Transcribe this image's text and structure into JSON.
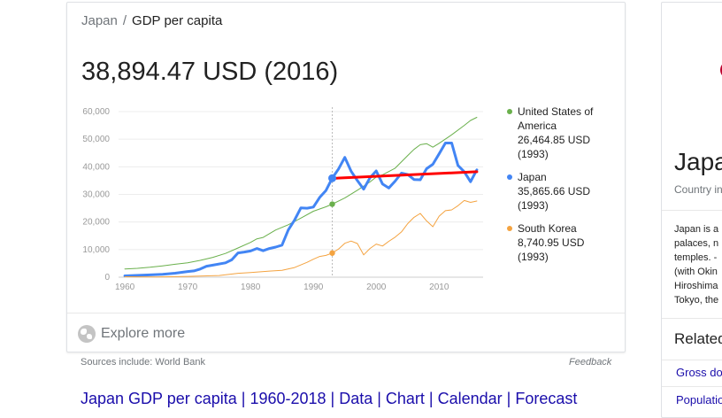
{
  "breadcrumb": {
    "country": "Japan",
    "separator": "/",
    "metric": "GDP per capita"
  },
  "headline": {
    "value": "38,894.47 USD (2016)"
  },
  "legend": [
    {
      "name_lines": [
        "United States of",
        "America"
      ],
      "value": "26,464.85 USD",
      "year": "(1993)",
      "color": "#6ab04c"
    },
    {
      "name_lines": [
        "Japan"
      ],
      "value": "35,865.66 USD",
      "year": "(1993)",
      "color": "#4285f4"
    },
    {
      "name_lines": [
        "South Korea"
      ],
      "value": "8,740.95 USD",
      "year": "(1993)",
      "color": "#f4a340"
    }
  ],
  "explore": {
    "label": "Explore more",
    "icon": "globe-icon"
  },
  "footer": {
    "sources": "Sources include: World Bank",
    "feedback": "Feedback"
  },
  "result": {
    "title": "Japan GDP per capita | 1960-2018 | Data | Chart | Calendar | Forecast"
  },
  "side_panel": {
    "title": "Japa",
    "subtitle": "Country in",
    "description_lines": [
      "Japan is a",
      "palaces, n",
      "temples. -",
      "(with Okin",
      "Hiroshima",
      "Tokyo, the"
    ],
    "related_label": "Related",
    "related_items": [
      "Gross do",
      "Population"
    ],
    "flag_color": "#bc002d"
  },
  "chart_data": {
    "type": "line",
    "title": "",
    "xlabel": "",
    "ylabel": "",
    "xlim": [
      1959,
      2017
    ],
    "ylim": [
      0,
      60000
    ],
    "x_ticks": [
      1960,
      1970,
      1980,
      1990,
      2000,
      2010
    ],
    "y_ticks": [
      0,
      10000,
      20000,
      30000,
      40000,
      50000,
      60000
    ],
    "y_tick_labels": [
      "0",
      "10,000",
      "20,000",
      "30,000",
      "40,000",
      "50,000",
      "60,000"
    ],
    "grid": true,
    "hover_year": 1993,
    "series": [
      {
        "name": "United States of America",
        "color": "#6ab04c",
        "width": 1,
        "points": [
          [
            1960,
            3000
          ],
          [
            1962,
            3200
          ],
          [
            1964,
            3600
          ],
          [
            1966,
            4100
          ],
          [
            1968,
            4700
          ],
          [
            1970,
            5200
          ],
          [
            1972,
            6100
          ],
          [
            1974,
            7200
          ],
          [
            1976,
            8600
          ],
          [
            1978,
            10600
          ],
          [
            1980,
            12600
          ],
          [
            1981,
            13900
          ],
          [
            1982,
            14400
          ],
          [
            1984,
            17100
          ],
          [
            1986,
            19000
          ],
          [
            1988,
            21400
          ],
          [
            1990,
            23900
          ],
          [
            1992,
            25500
          ],
          [
            1993,
            26464.85
          ],
          [
            1995,
            28700
          ],
          [
            1997,
            31500
          ],
          [
            1999,
            34500
          ],
          [
            2000,
            36300
          ],
          [
            2001,
            37100
          ],
          [
            2003,
            39500
          ],
          [
            2005,
            44100
          ],
          [
            2006,
            46300
          ],
          [
            2007,
            48000
          ],
          [
            2008,
            48400
          ],
          [
            2009,
            47100
          ],
          [
            2010,
            48500
          ],
          [
            2012,
            51600
          ],
          [
            2014,
            55000
          ],
          [
            2015,
            56800
          ],
          [
            2016,
            57900
          ]
        ]
      },
      {
        "name": "Japan",
        "color": "#4285f4",
        "width": 3,
        "points": [
          [
            1960,
            480
          ],
          [
            1964,
            840
          ],
          [
            1966,
            1070
          ],
          [
            1968,
            1450
          ],
          [
            1970,
            2040
          ],
          [
            1971,
            2270
          ],
          [
            1972,
            2950
          ],
          [
            1973,
            3990
          ],
          [
            1974,
            4350
          ],
          [
            1976,
            5200
          ],
          [
            1977,
            6300
          ],
          [
            1978,
            8800
          ],
          [
            1979,
            9100
          ],
          [
            1980,
            9500
          ],
          [
            1981,
            10400
          ],
          [
            1982,
            9600
          ],
          [
            1983,
            10400
          ],
          [
            1984,
            10900
          ],
          [
            1985,
            11600
          ],
          [
            1986,
            17100
          ],
          [
            1987,
            20700
          ],
          [
            1988,
            25100
          ],
          [
            1989,
            25000
          ],
          [
            1990,
            25400
          ],
          [
            1991,
            28900
          ],
          [
            1992,
            31400
          ],
          [
            1993,
            35865.66
          ],
          [
            1994,
            39200
          ],
          [
            1995,
            43400
          ],
          [
            1996,
            38400
          ],
          [
            1997,
            35000
          ],
          [
            1998,
            31900
          ],
          [
            1999,
            36000
          ],
          [
            2000,
            38500
          ],
          [
            2001,
            33800
          ],
          [
            2002,
            32300
          ],
          [
            2003,
            34800
          ],
          [
            2004,
            37700
          ],
          [
            2005,
            37200
          ],
          [
            2006,
            35400
          ],
          [
            2007,
            35300
          ],
          [
            2008,
            39300
          ],
          [
            2009,
            40900
          ],
          [
            2010,
            44700
          ],
          [
            2011,
            48600
          ],
          [
            2012,
            48600
          ],
          [
            2013,
            40500
          ],
          [
            2014,
            38200
          ],
          [
            2015,
            34600
          ],
          [
            2016,
            38900
          ]
        ]
      },
      {
        "name": "South Korea",
        "color": "#f4a340",
        "width": 1,
        "points": [
          [
            1960,
            160
          ],
          [
            1965,
            110
          ],
          [
            1970,
            280
          ],
          [
            1975,
            620
          ],
          [
            1978,
            1400
          ],
          [
            1980,
            1700
          ],
          [
            1983,
            2200
          ],
          [
            1985,
            2500
          ],
          [
            1987,
            3500
          ],
          [
            1989,
            5400
          ],
          [
            1990,
            6500
          ],
          [
            1991,
            7500
          ],
          [
            1992,
            7900
          ],
          [
            1993,
            8740.95
          ],
          [
            1994,
            10200
          ],
          [
            1995,
            12300
          ],
          [
            1996,
            13100
          ],
          [
            1997,
            12200
          ],
          [
            1998,
            8100
          ],
          [
            1999,
            10400
          ],
          [
            2000,
            12000
          ],
          [
            2001,
            11300
          ],
          [
            2002,
            13000
          ],
          [
            2003,
            14500
          ],
          [
            2004,
            16400
          ],
          [
            2005,
            19400
          ],
          [
            2006,
            21700
          ],
          [
            2007,
            23100
          ],
          [
            2008,
            20400
          ],
          [
            2009,
            18300
          ],
          [
            2010,
            22100
          ],
          [
            2011,
            24100
          ],
          [
            2012,
            24400
          ],
          [
            2013,
            25900
          ],
          [
            2014,
            27800
          ],
          [
            2015,
            27100
          ],
          [
            2016,
            27600
          ]
        ]
      },
      {
        "name": "",
        "color": "#ff0000",
        "width": 3,
        "points": [
          [
            1993,
            35800
          ],
          [
            2016,
            38200
          ]
        ]
      }
    ]
  }
}
